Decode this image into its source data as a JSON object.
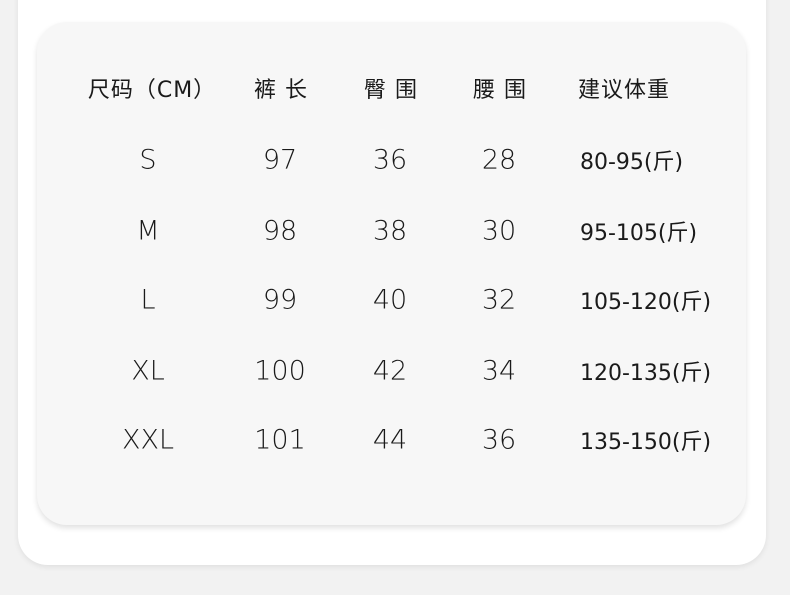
{
  "headers": [
    "尺码（CM）",
    "裤 长",
    "臀 围",
    "腰 围",
    "建议体重"
  ],
  "rows": [
    {
      "size": "S",
      "length": "97",
      "hip": "36",
      "waist": "28",
      "weight": "80-95(斤)"
    },
    {
      "size": "M",
      "length": "98",
      "hip": "38",
      "waist": "30",
      "weight": "95-105(斤)"
    },
    {
      "size": "L",
      "length": "99",
      "hip": "40",
      "waist": "32",
      "weight": "105-120(斤)"
    },
    {
      "size": "XL",
      "length": "100",
      "hip": "42",
      "waist": "34",
      "weight": "120-135(斤)"
    },
    {
      "size": "XXL",
      "length": "101",
      "hip": "44",
      "waist": "36",
      "weight": "135-150(斤)"
    }
  ]
}
